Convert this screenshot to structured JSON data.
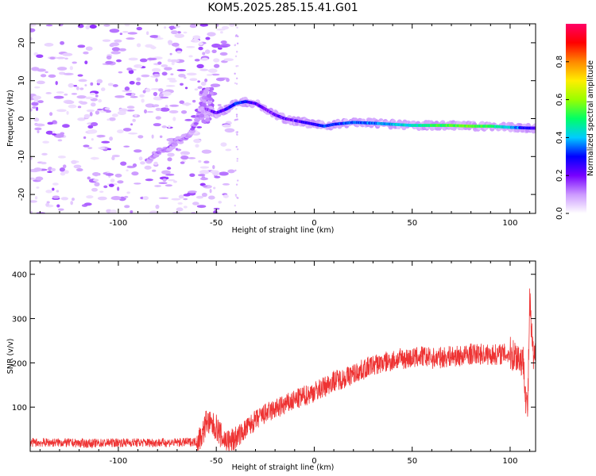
{
  "title": "KOM5.2025.285.15.41.G01",
  "chart_data": [
    {
      "type": "heatmap",
      "xlabel": "Height of straight line (km)",
      "ylabel": "Frequency (Hz)",
      "xlim": [
        -145,
        113
      ],
      "ylim": [
        -25,
        25
      ],
      "xticks": [
        -100,
        -50,
        0,
        50,
        100
      ],
      "yticks": [
        -20,
        -10,
        0,
        10,
        20
      ],
      "colorbar": {
        "label": "Normalized spectral amplitude",
        "range": [
          0,
          1
        ],
        "ticks": [
          0.0,
          0.2,
          0.4,
          0.6,
          0.8
        ],
        "tick_labels": [
          "0.0",
          "0.2",
          "0.4",
          "0.6",
          "0.8"
        ],
        "colors": [
          "#ffffff",
          "#cc99ff",
          "#7700ff",
          "#0000ff",
          "#00ccff",
          "#00ff66",
          "#99ff00",
          "#ffee00",
          "#ff8800",
          "#ff0000",
          "#ff0066"
        ]
      },
      "ridge": {
        "x": [
          -55,
          -50,
          -45,
          -40,
          -35,
          -30,
          -25,
          -20,
          -15,
          -10,
          -5,
          0,
          5,
          10,
          20,
          30,
          40,
          50,
          60,
          70,
          80,
          90,
          100,
          110
        ],
        "frequency": [
          2.5,
          1.5,
          2.5,
          4.0,
          4.5,
          4.0,
          2.5,
          1.0,
          0.0,
          -0.5,
          -1.0,
          -1.5,
          -2.0,
          -1.5,
          -1.0,
          -1.2,
          -1.5,
          -1.8,
          -1.8,
          -1.8,
          -2.0,
          -2.0,
          -2.3,
          -2.5
        ],
        "amplitude": [
          0.15,
          0.2,
          0.25,
          0.3,
          0.3,
          0.25,
          0.2,
          0.2,
          0.2,
          0.2,
          0.25,
          0.25,
          0.3,
          0.3,
          0.35,
          0.35,
          0.4,
          0.45,
          0.5,
          0.55,
          0.55,
          0.5,
          0.4,
          0.25
        ]
      },
      "low_branch": {
        "x": [
          -85,
          -80,
          -75,
          -70,
          -65,
          -60,
          -57
        ],
        "frequency": [
          -11,
          -9,
          -8,
          -6,
          -5,
          -1,
          5
        ]
      }
    },
    {
      "type": "line",
      "xlabel": "Height of straight line (km)",
      "ylabel": "SNR (v/v)",
      "xlim": [
        -145,
        113
      ],
      "ylim": [
        0,
        430
      ],
      "xticks": [
        -100,
        -50,
        0,
        50,
        100
      ],
      "yticks": [
        100,
        200,
        300,
        400
      ],
      "color": "#ee3333",
      "series": [
        {
          "x": [
            -145,
            -130,
            -115,
            -100,
            -85,
            -70,
            -60,
            -57,
            -55,
            -53,
            -50,
            -47,
            -43,
            -40,
            -35,
            -30,
            -25,
            -20,
            -15,
            -10,
            -5,
            0,
            5,
            10,
            15,
            20,
            25,
            30,
            35,
            40,
            45,
            50,
            55,
            60,
            65,
            70,
            75,
            80,
            85,
            90,
            95,
            100,
            104,
            107,
            108,
            109,
            110,
            111,
            112,
            113
          ],
          "values": [
            20,
            20,
            18,
            20,
            20,
            20,
            22,
            40,
            70,
            60,
            55,
            30,
            20,
            30,
            50,
            70,
            85,
            95,
            105,
            115,
            125,
            135,
            145,
            160,
            165,
            175,
            185,
            195,
            200,
            205,
            210,
            210,
            215,
            210,
            212,
            215,
            215,
            220,
            220,
            218,
            220,
            220,
            215,
            200,
            120,
            95,
            340,
            260,
            200,
            220
          ]
        }
      ]
    }
  ]
}
